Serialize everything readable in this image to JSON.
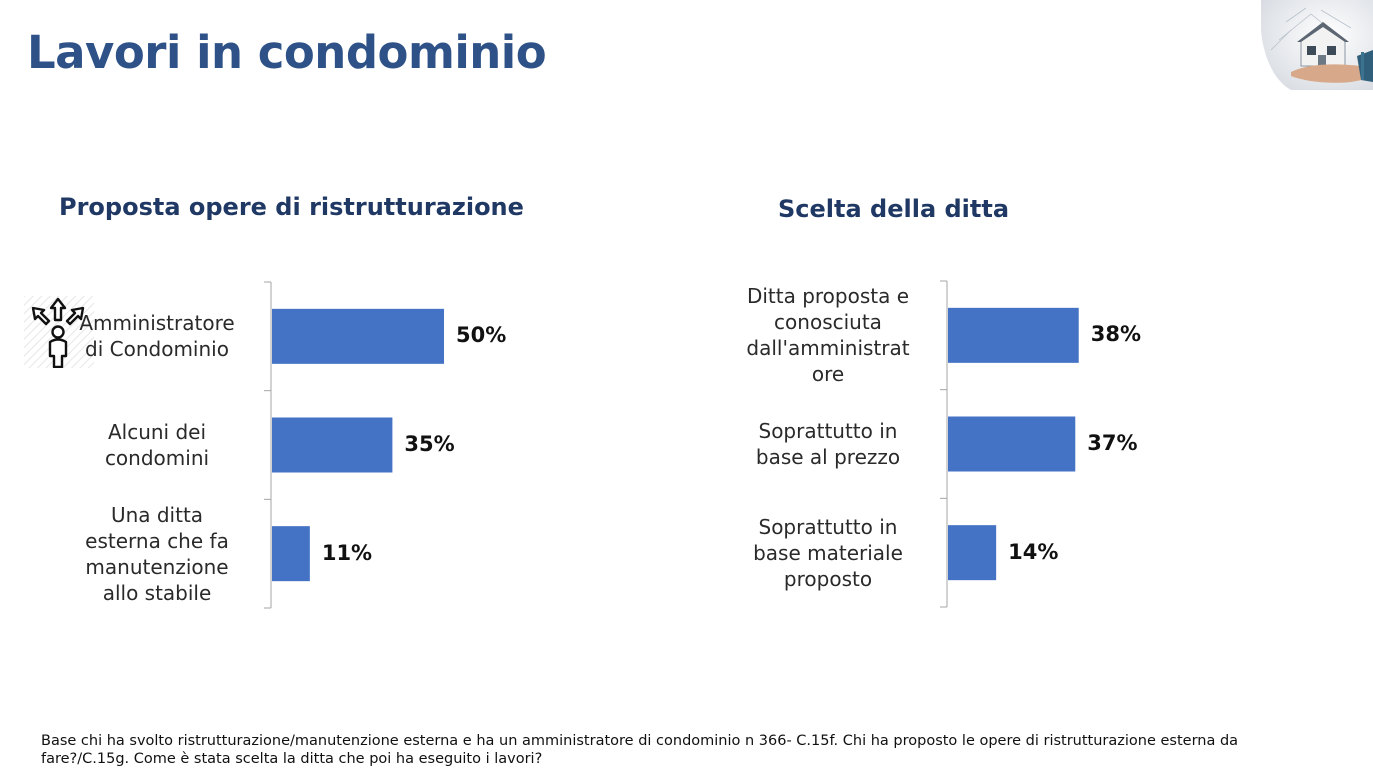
{
  "page": {
    "title": "Lavori in condominio",
    "footnote": "Base chi ha svolto ristrutturazione/manutenzione esterna e ha un amministratore di condominio n 366- C.15f. Chi ha proposto le opere di ristrutturazione esterna da fare?/C.15g. Come è stata scelta la ditta che poi ha eseguito i lavori?"
  },
  "colors": {
    "title": "#2e5288",
    "subtitle": "#1f3864",
    "bar": "#4472c4",
    "axis": "#a6a6a6"
  },
  "icons": {
    "left_category_icon": "person-choice-arrows-icon",
    "corner_image": "house-model-in-hand-photo"
  },
  "chart_data": [
    {
      "type": "bar",
      "orientation": "horizontal",
      "title": "Proposta opere di ristrutturazione",
      "categories": [
        "Amministratore di Condominio",
        "Alcuni dei condomini",
        "Una ditta esterna che fa manutenzione allo stabile"
      ],
      "values": [
        50,
        35,
        11
      ],
      "value_labels": [
        "50%",
        "35%",
        "11%"
      ],
      "unit": "%",
      "xlim": [
        0,
        100
      ],
      "grid": false,
      "legend": "none"
    },
    {
      "type": "bar",
      "orientation": "horizontal",
      "title": "Scelta della ditta",
      "categories": [
        "Ditta proposta e conosciuta dall'amministrat ore",
        "Soprattutto in base al prezzo",
        "Soprattutto in base materiale proposto"
      ],
      "values": [
        38,
        37,
        14
      ],
      "value_labels": [
        "38%",
        "37%",
        "14%"
      ],
      "unit": "%",
      "xlim": [
        0,
        100
      ],
      "grid": false,
      "legend": "none"
    }
  ]
}
